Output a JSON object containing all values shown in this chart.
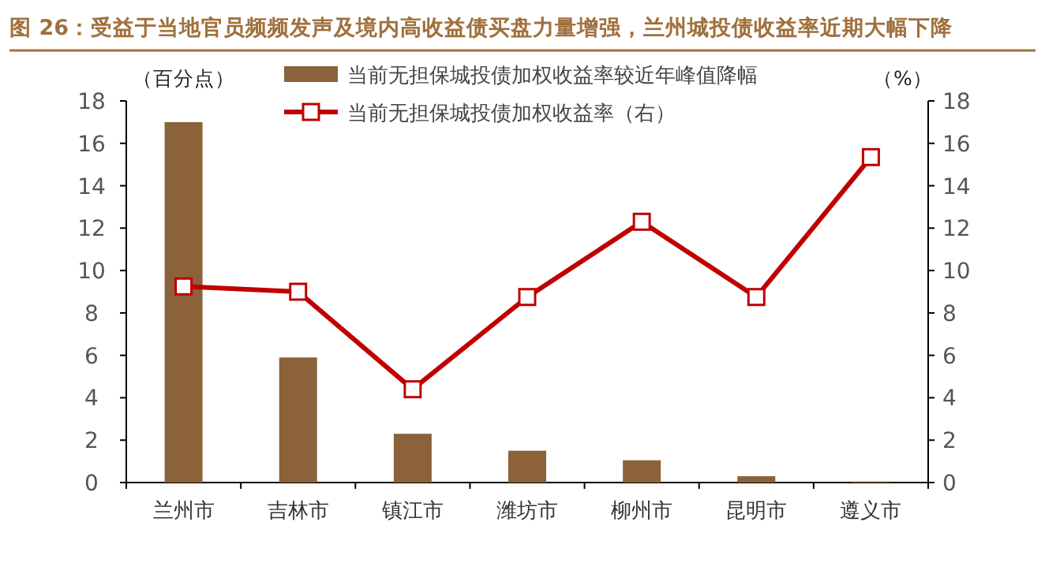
{
  "chart_data": {
    "type": "bar",
    "title": "图 26：受益于当地官员频频发声及境内高收益债买盘力量增强，兰州城投债收益率近期大幅下降",
    "categories": [
      "兰州市",
      "吉林市",
      "镇江市",
      "潍坊市",
      "柳州市",
      "昆明市",
      "遵义市"
    ],
    "series": [
      {
        "name": "当前无担保城投债加权收益率较近年峰值降幅",
        "color": "#8b6239",
        "values": [
          17.0,
          5.9,
          2.3,
          1.5,
          1.05,
          0.3,
          0.05
        ]
      },
      {
        "name": "当前无担保城投债加权收益率（右）",
        "type": "line",
        "axis": "y2",
        "color": "#c00000",
        "marker": "square",
        "values": [
          9.25,
          9.0,
          4.4,
          8.75,
          12.3,
          8.75,
          15.35
        ]
      }
    ],
    "ylabel": "（百分点）",
    "y2label": "（%）",
    "ylim": [
      0,
      18
    ],
    "yticks": [
      0,
      2,
      4,
      6,
      8,
      10,
      12,
      14,
      16,
      18
    ],
    "y2lim": [
      0,
      18
    ],
    "y2ticks": [
      0,
      2,
      4,
      6,
      8,
      10,
      12,
      14,
      16,
      18
    ],
    "legend": "top",
    "grid": false
  }
}
